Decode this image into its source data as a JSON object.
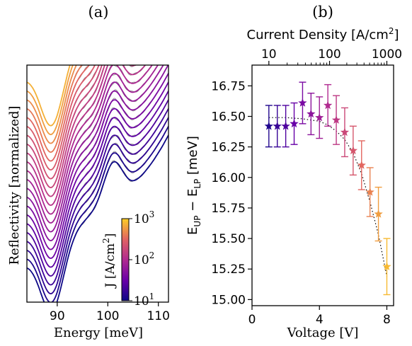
{
  "panels": {
    "a": "(a)",
    "b": "(b)"
  },
  "chart_data": [
    {
      "type": "line",
      "panel": "(a)",
      "xlabel": "Energy [meV]",
      "ylabel": "Reflectivity [normalized]",
      "xlim": [
        84,
        112
      ],
      "x_ticks": [
        "90",
        "100",
        "110"
      ],
      "x_tick_values": [
        90,
        100,
        110
      ],
      "curve_count": 22,
      "colormap": "plasma",
      "colorbar": {
        "label_base": "J [A/cm",
        "label_sup": "2",
        "label_end": "]",
        "ticks": [
          {
            "base": "10",
            "exp": "1"
          },
          {
            "base": "10",
            "exp": "2"
          },
          {
            "base": "10",
            "exp": "3"
          }
        ],
        "range": [
          10,
          1000
        ],
        "scale": "log"
      },
      "dip_energy": 89,
      "shoulder_energy": 101
    },
    {
      "type": "scatter",
      "panel": "(b)",
      "xlabel": "Voltage [V]",
      "ylabel": {
        "text": "E",
        "sub1": "UP",
        "mid": " − E",
        "sub2": "LP",
        "unit": " [meV]"
      },
      "top_xlabel": {
        "text": "Current Density [A/cm",
        "sup": "2",
        "end": "]"
      },
      "xlim": [
        0,
        8.4
      ],
      "ylim": [
        14.95,
        16.92
      ],
      "x_ticks": [
        0,
        4,
        8
      ],
      "y_ticks": [
        "15.00",
        "15.25",
        "15.50",
        "15.75",
        "16.00",
        "16.25",
        "16.50",
        "16.75"
      ],
      "y_tick_values": [
        15.0,
        15.25,
        15.5,
        15.75,
        16.0,
        16.25,
        16.5,
        16.75
      ],
      "top_ticks": [
        {
          "label": "10",
          "voltage": 1.0
        },
        {
          "label": "100",
          "voltage": 4.6
        },
        {
          "label": "1000",
          "voltage": 8.0
        }
      ],
      "marker": "star",
      "grid": false,
      "series": [
        {
          "x": [
            1.0,
            1.5,
            2.0,
            2.5,
            3.0,
            3.5,
            4.0,
            4.5,
            5.0,
            5.5,
            6.0,
            6.5,
            7.0,
            7.5,
            8.0
          ],
          "y": [
            16.42,
            16.42,
            16.42,
            16.44,
            16.61,
            16.52,
            16.49,
            16.59,
            16.47,
            16.37,
            16.22,
            16.1,
            15.88,
            15.7,
            15.27
          ],
          "err": [
            0.17,
            0.17,
            0.17,
            0.17,
            0.17,
            0.17,
            0.17,
            0.17,
            0.2,
            0.2,
            0.2,
            0.2,
            0.2,
            0.22,
            0.23
          ]
        }
      ],
      "fit": {
        "style": "dotted",
        "x": [
          1.0,
          2.0,
          3.0,
          4.0,
          4.5,
          5.0,
          5.5,
          6.0,
          6.5,
          7.0,
          7.5,
          8.0
        ],
        "y": [
          16.49,
          16.49,
          16.48,
          16.46,
          16.43,
          16.38,
          16.31,
          16.2,
          16.03,
          15.8,
          15.53,
          15.19
        ]
      }
    }
  ]
}
